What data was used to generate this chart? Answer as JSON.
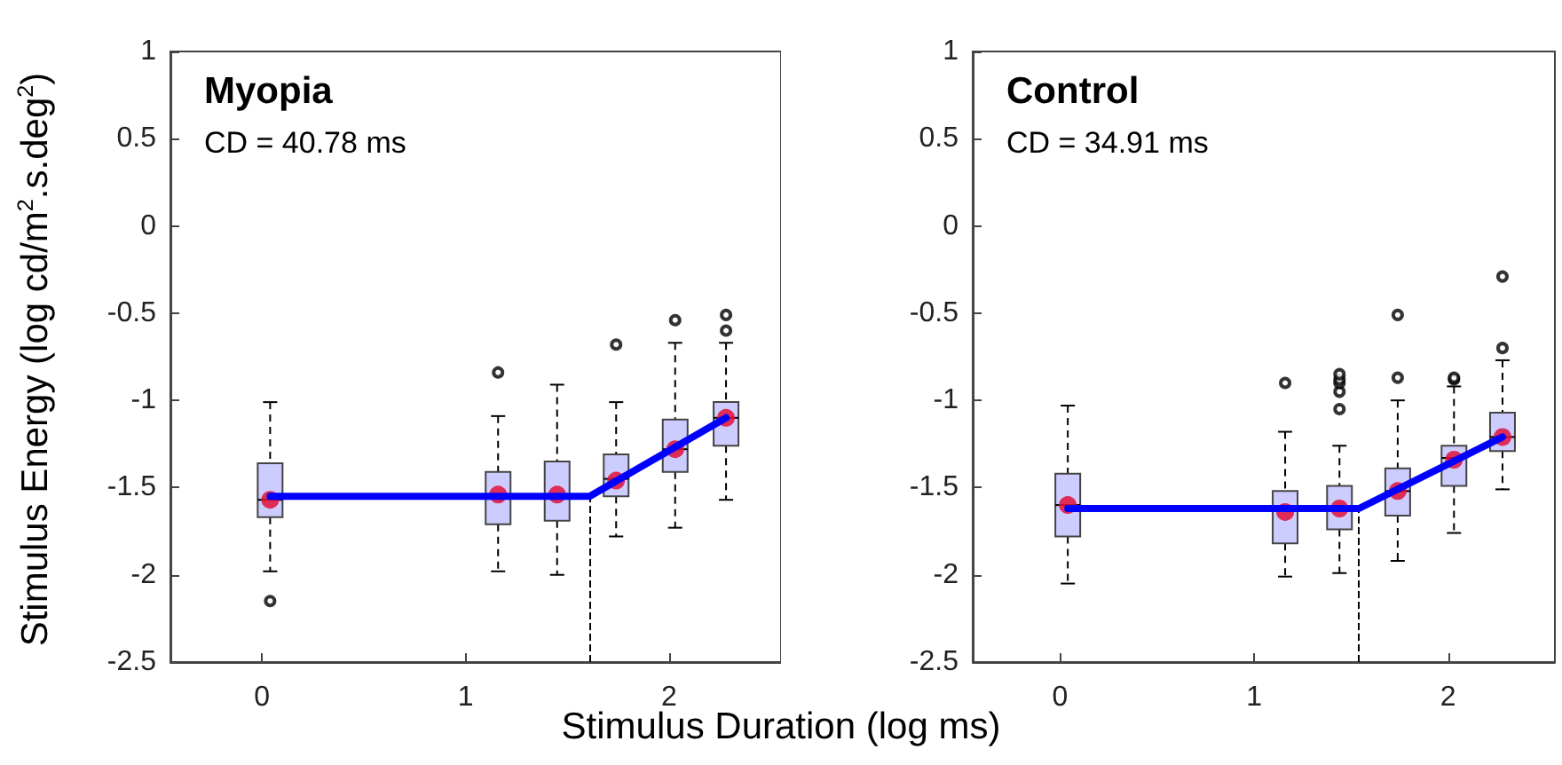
{
  "chart_data": [
    {
      "type": "box",
      "title": "Myopia",
      "subtitle": "CD = 40.78 ms",
      "ylabel": "Stimulus Energy (log cd/m$^{2}$.s.deg$^{2}$)",
      "xlabel": "Stimulus Duration (log ms)",
      "color": "#ccccff",
      "x": [
        0.04,
        1.16,
        1.45,
        1.74,
        2.03,
        2.28
      ],
      "xlim": [
        -0.45,
        2.55
      ],
      "xticks": [
        0,
        1,
        2
      ],
      "ylim": [
        -2.5,
        1
      ],
      "yticks": [
        -2.5,
        -2,
        -1.5,
        -1,
        -0.5,
        0,
        0.5,
        1
      ],
      "boxes": [
        {
          "low": -1.98,
          "q1": -1.67,
          "median": -1.57,
          "q3": -1.36,
          "high": -1.01,
          "mean": -1.57,
          "outliers": [
            -2.15
          ]
        },
        {
          "low": -1.98,
          "q1": -1.71,
          "median": -1.54,
          "q3": -1.41,
          "high": -1.09,
          "mean": -1.54,
          "outliers": [
            -0.84
          ]
        },
        {
          "low": -2.0,
          "q1": -1.69,
          "median": -1.54,
          "q3": -1.35,
          "high": -0.91,
          "mean": -1.54
        },
        {
          "low": -1.78,
          "q1": -1.55,
          "median": -1.45,
          "q3": -1.31,
          "high": -1.01,
          "mean": -1.46,
          "outliers": [
            -0.68
          ]
        },
        {
          "low": -1.73,
          "q1": -1.41,
          "median": -1.28,
          "q3": -1.11,
          "high": -0.67,
          "mean": -1.28,
          "outliers": [
            -0.54
          ]
        },
        {
          "low": -1.57,
          "q1": -1.26,
          "median": -1.1,
          "q3": -1.01,
          "high": -0.67,
          "mean": -1.1,
          "outliers": [
            -0.6,
            -0.51
          ]
        }
      ],
      "series": [
        {
          "type": "line",
          "color": "#0000ff",
          "x": [
            0.04,
            1.61,
            2.28
          ],
          "values": [
            -1.55,
            -1.55,
            -1.1
          ]
        }
      ],
      "ref_lines": [
        {
          "axis": "x",
          "value": 1.61,
          "line_style": "dashed"
        }
      ]
    },
    {
      "type": "box",
      "title": "Control",
      "subtitle": "CD = 34.91 ms",
      "color": "#ccccff",
      "x": [
        0.04,
        1.16,
        1.44,
        1.74,
        2.03,
        2.28
      ],
      "xlim": [
        -0.45,
        2.55
      ],
      "xticks": [
        0,
        1,
        2
      ],
      "ylim": [
        -2.5,
        1
      ],
      "yticks": [
        -2.5,
        -2,
        -1.5,
        -1,
        -0.5,
        0,
        0.5,
        1
      ],
      "boxes": [
        {
          "low": -2.05,
          "q1": -1.78,
          "median": -1.6,
          "q3": -1.42,
          "high": -1.03,
          "mean": -1.6
        },
        {
          "low": -2.01,
          "q1": -1.82,
          "median": -1.63,
          "q3": -1.52,
          "high": -1.18,
          "mean": -1.64,
          "outliers": [
            -0.9
          ]
        },
        {
          "low": -1.99,
          "q1": -1.74,
          "median": -1.62,
          "q3": -1.49,
          "high": -1.26,
          "mean": -1.62,
          "outliers": [
            -1.05,
            -0.95,
            -0.9,
            -0.88,
            -0.85
          ]
        },
        {
          "low": -1.92,
          "q1": -1.66,
          "median": -1.52,
          "q3": -1.39,
          "high": -1.0,
          "mean": -1.52,
          "outliers": [
            -0.87,
            -0.51
          ]
        },
        {
          "low": -1.76,
          "q1": -1.49,
          "median": -1.33,
          "q3": -1.26,
          "high": -0.92,
          "mean": -1.34,
          "outliers": [
            -0.88,
            -0.87
          ]
        },
        {
          "low": -1.51,
          "q1": -1.29,
          "median": -1.21,
          "q3": -1.07,
          "high": -0.77,
          "mean": -1.21,
          "outliers": [
            -0.7,
            -0.29
          ]
        }
      ],
      "series": [
        {
          "type": "line",
          "color": "#0000ff",
          "x": [
            0.04,
            1.54,
            2.28
          ],
          "values": [
            -1.62,
            -1.62,
            -1.21
          ]
        }
      ],
      "ref_lines": [
        {
          "axis": "x",
          "value": 1.54,
          "line_style": "dashed"
        }
      ]
    }
  ]
}
